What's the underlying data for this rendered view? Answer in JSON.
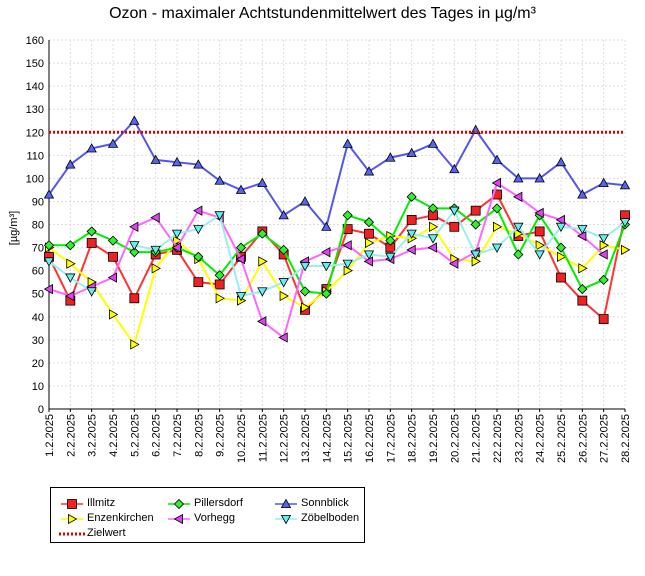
{
  "chart_data": {
    "type": "line",
    "title": "Ozon -  maximaler Achtstundenmittelwert des Tages in µg/m³",
    "ylabel": "[µg/m³]",
    "xlabel": "",
    "ylim": [
      0,
      160
    ],
    "yticks": [
      0,
      10,
      20,
      30,
      40,
      50,
      60,
      70,
      80,
      90,
      100,
      110,
      120,
      130,
      140,
      150,
      160
    ],
    "grid": true,
    "legend_position": "bottom-left",
    "categories": [
      "1.2.2025",
      "2.2.2025",
      "3.2.2025",
      "4.2.2025",
      "5.2.2025",
      "6.2.2025",
      "7.2.2025",
      "8.2.2025",
      "9.2.2025",
      "10.2.2025",
      "11.2.2025",
      "12.2.2025",
      "13.2.2025",
      "14.2.2025",
      "15.2.2025",
      "16.2.2025",
      "17.2.2025",
      "18.2.2025",
      "19.2.2025",
      "20.2.2025",
      "21.2.2025",
      "22.2.2025",
      "23.2.2025",
      "24.2.2025",
      "25.2.2025",
      "26.2.2025",
      "27.2.2025",
      "28.2.2025"
    ],
    "series": [
      {
        "name": "Illmitz",
        "color": "#ff3333",
        "marker": "square",
        "marker_fill": "#ee2222",
        "values": [
          66,
          47,
          72,
          66,
          48,
          67,
          69,
          55,
          54,
          66,
          77,
          67,
          43,
          52,
          78,
          76,
          70,
          82,
          84,
          79,
          86,
          93,
          75,
          77,
          57,
          47,
          39,
          84
        ]
      },
      {
        "name": "Enzenkirchen",
        "color": "#ffff00",
        "marker": "triangle-right",
        "marker_fill": "#ffff00",
        "values": [
          70,
          63,
          55,
          41,
          28,
          61,
          73,
          65,
          48,
          47,
          64,
          49,
          44,
          51,
          60,
          72,
          75,
          74,
          79,
          65,
          64,
          79,
          76,
          71,
          66,
          61,
          71,
          69
        ]
      },
      {
        "name": "Pillersdorf",
        "color": "#00ee00",
        "marker": "diamond",
        "marker_fill": "#33ee33",
        "values": [
          71,
          71,
          77,
          73,
          68,
          68,
          70,
          66,
          58,
          70,
          76,
          69,
          51,
          50,
          84,
          81,
          73,
          92,
          87,
          87,
          80,
          87,
          67,
          84,
          70,
          52,
          56,
          80
        ]
      },
      {
        "name": "Vorhegg",
        "color": "#ff66ff",
        "marker": "triangle-left",
        "marker_fill": "#dd44ee",
        "values": [
          52,
          49,
          53,
          57,
          79,
          83,
          70,
          86,
          83,
          65,
          38,
          31,
          64,
          68,
          71,
          64,
          65,
          69,
          70,
          63,
          68,
          98,
          92,
          85,
          82,
          75,
          67,
          null
        ]
      },
      {
        "name": "Sonnblick",
        "color": "#5555ee",
        "marker": "triangle-up",
        "marker_fill": "#5566ee",
        "values": [
          93,
          106,
          113,
          115,
          125,
          108,
          107,
          106,
          99,
          95,
          98,
          84,
          90,
          79,
          115,
          103,
          109,
          111,
          115,
          104,
          121,
          108,
          100,
          100,
          107,
          93,
          98,
          97
        ]
      },
      {
        "name": "Zöbelboden",
        "color": "#99eeee",
        "marker": "triangle-down",
        "marker_fill": "#66eeee",
        "values": [
          64,
          57,
          51,
          null,
          71,
          69,
          76,
          78,
          84,
          49,
          51,
          55,
          62,
          62,
          63,
          67,
          66,
          76,
          74,
          86,
          67,
          70,
          79,
          67,
          79,
          78,
          74,
          81
        ]
      },
      {
        "name": "Zielwert",
        "color": "#dd0000",
        "marker": "none",
        "dotted": true,
        "constant": 120
      }
    ]
  }
}
